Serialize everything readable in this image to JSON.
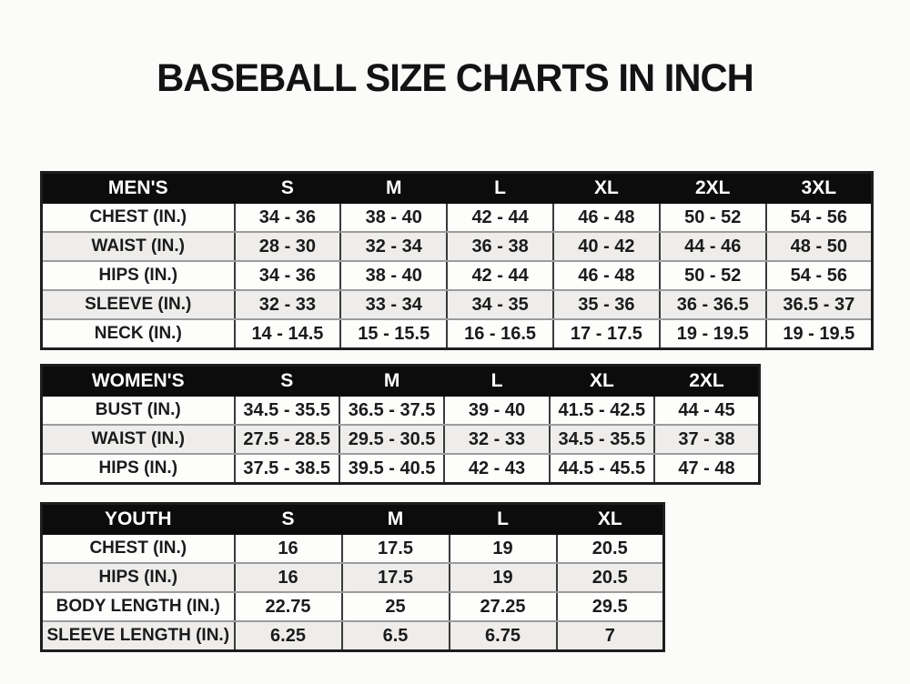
{
  "title": "BASEBALL SIZE CHARTS IN INCH",
  "colors": {
    "header_bg": "#0c0c0c",
    "header_text": "#ffffff",
    "row_bg": "#fdfdfc",
    "row_alt_bg": "#eeedeb",
    "border_dark": "#3a3a3a",
    "border_light": "#9c9c9c",
    "text": "#1b1b1b"
  },
  "tables": [
    {
      "name": "MEN'S",
      "columns": [
        "S",
        "M",
        "L",
        "XL",
        "2XL",
        "3XL"
      ],
      "rows": [
        {
          "label": "CHEST (IN.)",
          "values": [
            "34 - 36",
            "38 - 40",
            "42 - 44",
            "46 - 48",
            "50 - 52",
            "54 - 56"
          ]
        },
        {
          "label": "WAIST (IN.)",
          "values": [
            "28 - 30",
            "32 - 34",
            "36 - 38",
            "40 - 42",
            "44 - 46",
            "48 - 50"
          ]
        },
        {
          "label": "HIPS (IN.)",
          "values": [
            "34 - 36",
            "38 - 40",
            "42 - 44",
            "46 - 48",
            "50 - 52",
            "54 - 56"
          ]
        },
        {
          "label": "SLEEVE (IN.)",
          "values": [
            "32 - 33",
            "33 - 34",
            "34 - 35",
            "35 - 36",
            "36 - 36.5",
            "36.5 - 37"
          ]
        },
        {
          "label": "NECK (IN.)",
          "values": [
            "14 - 14.5",
            "15 - 15.5",
            "16 - 16.5",
            "17 - 17.5",
            "19 - 19.5",
            "19 - 19.5"
          ]
        }
      ]
    },
    {
      "name": "WOMEN'S",
      "columns": [
        "S",
        "M",
        "L",
        "XL",
        "2XL"
      ],
      "rows": [
        {
          "label": "BUST (IN.)",
          "values": [
            "34.5 - 35.5",
            "36.5 - 37.5",
            "39 - 40",
            "41.5 - 42.5",
            "44 - 45"
          ]
        },
        {
          "label": "WAIST (IN.)",
          "values": [
            "27.5 - 28.5",
            "29.5 - 30.5",
            "32 - 33",
            "34.5 - 35.5",
            "37 - 38"
          ]
        },
        {
          "label": "HIPS (IN.)",
          "values": [
            "37.5 - 38.5",
            "39.5 - 40.5",
            "42 - 43",
            "44.5 - 45.5",
            "47 - 48"
          ]
        }
      ]
    },
    {
      "name": "YOUTH",
      "columns": [
        "S",
        "M",
        "L",
        "XL"
      ],
      "rows": [
        {
          "label": "CHEST (IN.)",
          "values": [
            "16",
            "17.5",
            "19",
            "20.5"
          ]
        },
        {
          "label": "HIPS (IN.)",
          "values": [
            "16",
            "17.5",
            "19",
            "20.5"
          ]
        },
        {
          "label": "BODY LENGTH (IN.)",
          "values": [
            "22.75",
            "25",
            "27.25",
            "29.5"
          ]
        },
        {
          "label": "SLEEVE LENGTH (IN.)",
          "values": [
            "6.25",
            "6.5",
            "6.75",
            "7"
          ]
        }
      ]
    }
  ]
}
